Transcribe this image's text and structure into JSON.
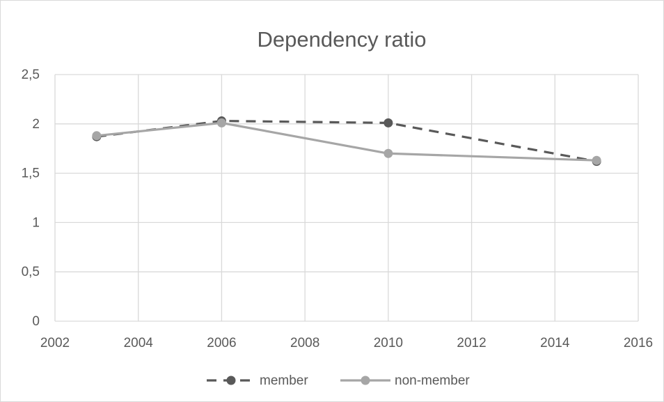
{
  "chart_data": {
    "type": "line",
    "title": "Dependency ratio",
    "xlabel": "",
    "ylabel": "",
    "xlim": [
      2002,
      2016
    ],
    "ylim": [
      0,
      2.5
    ],
    "xticks": [
      2002,
      2004,
      2006,
      2008,
      2010,
      2012,
      2014,
      2016
    ],
    "yticks": [
      0,
      0.5,
      1,
      1.5,
      2,
      2.5
    ],
    "ytick_labels": [
      "0",
      "0,5",
      "1",
      "1,5",
      "2",
      "2,5"
    ],
    "grid": true,
    "legend_position": "bottom",
    "series": [
      {
        "name": "member",
        "color": "#595959",
        "dash": true,
        "points": [
          [
            2003,
            1.87
          ],
          [
            2006,
            2.03
          ],
          [
            2010,
            2.01
          ],
          [
            2015,
            1.62
          ]
        ]
      },
      {
        "name": "non-member",
        "color": "#a6a6a6",
        "dash": false,
        "points": [
          [
            2003,
            1.88
          ],
          [
            2006,
            2.01
          ],
          [
            2010,
            1.7
          ],
          [
            2015,
            1.63
          ]
        ]
      }
    ]
  }
}
